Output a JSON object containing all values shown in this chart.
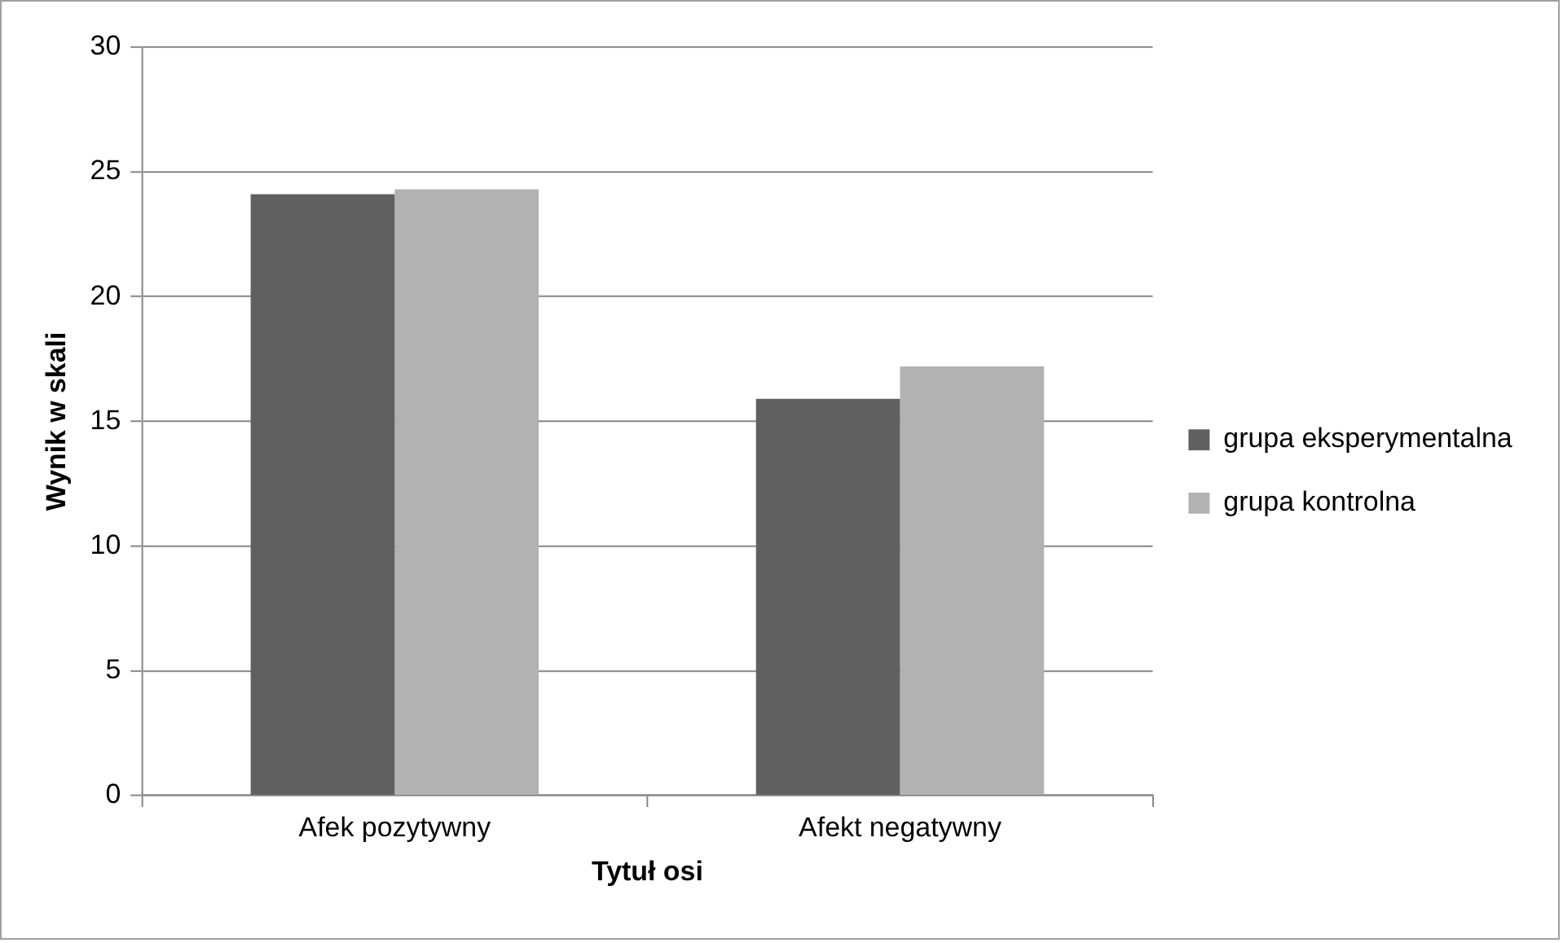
{
  "chart_data": {
    "type": "bar",
    "xlabel": "Tytuł osi",
    "ylabel": "Wynik w skali",
    "categories": [
      "Afek pozytywny",
      "Afekt negatywny"
    ],
    "series": [
      {
        "name": "grupa eksperymentalna",
        "color": "#606060",
        "values": [
          24.1,
          15.9
        ]
      },
      {
        "name": "grupa kontrolna",
        "color": "#b2b2b2",
        "values": [
          24.3,
          17.2
        ]
      }
    ],
    "ylim": [
      0,
      30
    ],
    "yticks": [
      0,
      5,
      10,
      15,
      20,
      25,
      30
    ],
    "grid": "y",
    "legend": "right"
  }
}
